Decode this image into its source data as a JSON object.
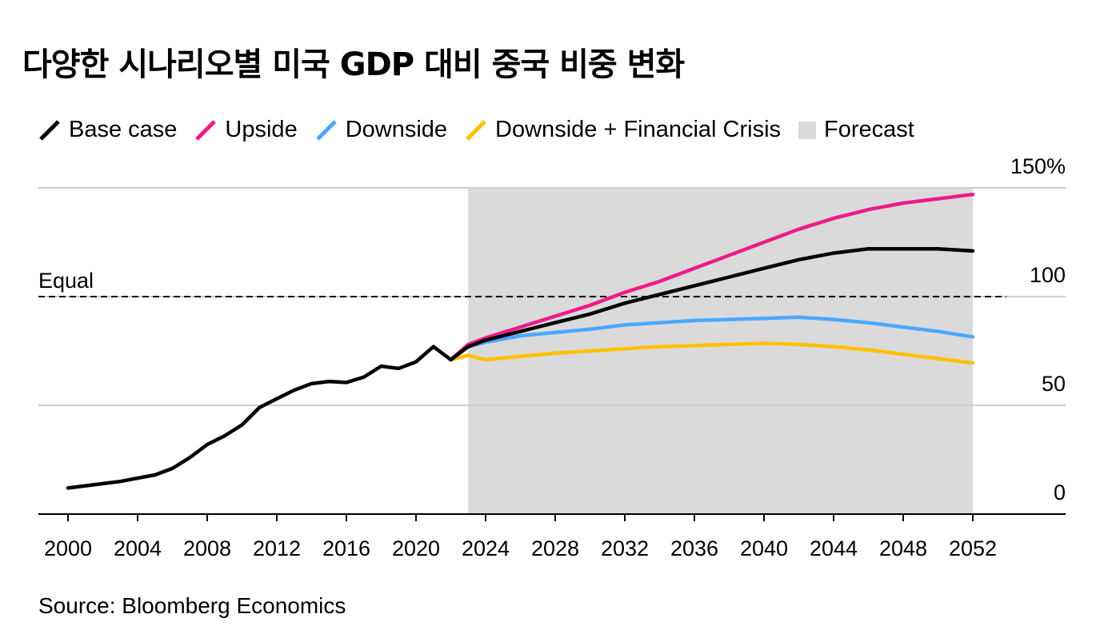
{
  "title": "다양한 시나리오별 미국 GDP 대비 중국 비중 변화",
  "source": "Source: Bloomberg Economics",
  "legend": [
    {
      "label": "Base case",
      "color": "#000000",
      "kind": "line"
    },
    {
      "label": "Upside",
      "color": "#ee1a8a",
      "kind": "line"
    },
    {
      "label": "Downside",
      "color": "#4aa8ff",
      "kind": "line"
    },
    {
      "label": "Downside + Financial Crisis",
      "color": "#ffc000",
      "kind": "line"
    },
    {
      "label": "Forecast",
      "color": "#dadada",
      "kind": "box"
    }
  ],
  "chart_data": {
    "type": "line",
    "title": "다양한 시나리오별 미국 GDP 대비 중국 비중 변화",
    "xlabel": "",
    "ylabel": "",
    "xlim": [
      1998.5,
      2055
    ],
    "ylim": [
      0,
      150
    ],
    "x_ticks": [
      2000,
      2004,
      2008,
      2012,
      2016,
      2020,
      2024,
      2028,
      2032,
      2036,
      2040,
      2044,
      2048,
      2052
    ],
    "y_ticks": [
      0,
      50,
      100,
      150
    ],
    "y_tick_labels": [
      "0",
      "50",
      "100",
      "150%"
    ],
    "reference_line": {
      "value": 100,
      "label": "Equal"
    },
    "forecast_range": [
      2023,
      2052
    ],
    "series": [
      {
        "name": "Base case",
        "color": "#000000",
        "x": [
          2000,
          2001,
          2002,
          2003,
          2004,
          2005,
          2006,
          2007,
          2008,
          2009,
          2010,
          2011,
          2012,
          2013,
          2014,
          2015,
          2016,
          2017,
          2018,
          2019,
          2020,
          2021,
          2022,
          2023,
          2024,
          2026,
          2028,
          2030,
          2032,
          2034,
          2036,
          2038,
          2040,
          2042,
          2044,
          2046,
          2048,
          2050,
          2052
        ],
        "y": [
          12,
          13,
          14,
          15,
          16.5,
          18,
          21,
          26,
          32,
          36,
          41,
          49,
          53,
          57,
          60,
          61,
          60.5,
          63,
          68,
          67,
          70,
          77,
          71,
          77,
          80,
          84,
          88,
          92,
          97,
          101,
          105,
          109,
          113,
          117,
          120,
          122,
          122,
          122,
          121
        ]
      },
      {
        "name": "Upside",
        "color": "#ee1a8a",
        "x": [
          2022,
          2023,
          2024,
          2026,
          2028,
          2030,
          2032,
          2034,
          2036,
          2038,
          2040,
          2042,
          2044,
          2046,
          2048,
          2050,
          2052
        ],
        "y": [
          71,
          78,
          81,
          86,
          91,
          96,
          102,
          107,
          113,
          119,
          125,
          131,
          136,
          140,
          143,
          145,
          147
        ]
      },
      {
        "name": "Downside",
        "color": "#4aa8ff",
        "x": [
          2022,
          2023,
          2024,
          2026,
          2028,
          2030,
          2032,
          2034,
          2036,
          2038,
          2040,
          2042,
          2044,
          2046,
          2048,
          2050,
          2052
        ],
        "y": [
          71,
          77,
          79,
          82,
          83.5,
          85,
          87,
          88,
          89,
          89.5,
          90,
          90.5,
          89.5,
          88,
          86,
          84,
          81.5
        ]
      },
      {
        "name": "Downside + Financial Crisis",
        "color": "#ffc000",
        "x": [
          2022,
          2023,
          2024,
          2026,
          2028,
          2030,
          2032,
          2034,
          2036,
          2038,
          2040,
          2042,
          2044,
          2046,
          2048,
          2050,
          2052
        ],
        "y": [
          71,
          73,
          71,
          72.5,
          74,
          75,
          76,
          77,
          77.5,
          78,
          78.5,
          78,
          77,
          75.5,
          73.5,
          71.5,
          69.5
        ]
      }
    ]
  }
}
